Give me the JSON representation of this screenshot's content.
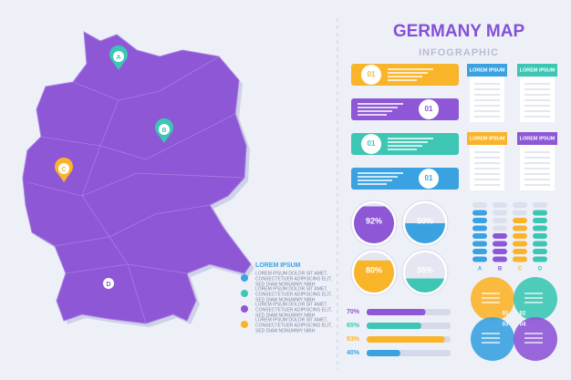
{
  "header": {
    "title": "GERMANY MAP",
    "subtitle": "INFOGRAPHIC"
  },
  "map": {
    "pins": [
      {
        "label": "A",
        "color": "#3cc6b3"
      },
      {
        "label": "B",
        "color": "#3cc6b3"
      },
      {
        "label": "C",
        "color": "#f9b42a"
      },
      {
        "label": "D",
        "color": "#8e57d6"
      }
    ]
  },
  "legend": {
    "title": "LOREM IPSUM",
    "items": [
      {
        "color": "#3aa2e0",
        "lines": [
          "LOREM IPSUM DOLOR SIT AMET,",
          "CONSECTETUER ADIPISCING ELIT,",
          "SED DIAM NONUMMY NIBH"
        ]
      },
      {
        "color": "#3cc6b3",
        "lines": [
          "LOREM IPSUM DOLOR SIT AMET,",
          "CONSECTETUER ADIPISCING ELIT,",
          "SED DIAM NONUMMY NIBH"
        ]
      },
      {
        "color": "#8e57d6",
        "lines": [
          "LOREM IPSUM DOLOR SIT AMET,",
          "CONSECTETUER ADIPISCING ELIT,",
          "SED DIAM NONUMMY NIBH"
        ]
      },
      {
        "color": "#f9b42a",
        "lines": [
          "LOREM IPSUM DOLOR SIT AMET,",
          "CONSECTETUER ADIPISCING ELIT,",
          "SED DIAM NONUMMY NIBH"
        ]
      }
    ]
  },
  "banners": [
    {
      "number": "01",
      "color": "#f9b42a"
    },
    {
      "number": "01",
      "color": "#8e57d6"
    },
    {
      "number": "01",
      "color": "#3cc6b3"
    },
    {
      "number": "01",
      "color": "#3aa2e0"
    }
  ],
  "cards": [
    {
      "title": "LOREM IPSUM",
      "color": "#3aa2e0"
    },
    {
      "title": "LOREM IPSUM",
      "color": "#3cc6b3"
    },
    {
      "title": "LOREM IPSUM",
      "color": "#f9b42a"
    },
    {
      "title": "LOREM IPSUM",
      "color": "#8e57d6"
    }
  ],
  "gauges": [
    {
      "value": 92,
      "label": "92%",
      "color": "#8e57d6"
    },
    {
      "value": 50,
      "label": "50%",
      "color": "#3aa2e0"
    },
    {
      "value": 80,
      "label": "80%",
      "color": "#f9b42a"
    },
    {
      "value": 35,
      "label": "35%",
      "color": "#3cc6b3"
    }
  ],
  "columns": [
    {
      "label": "A",
      "color": "#3aa2e0"
    },
    {
      "label": "B",
      "color": "#8e57d6"
    },
    {
      "label": "C",
      "color": "#f9b42a"
    },
    {
      "label": "D",
      "color": "#3cc6b3"
    }
  ],
  "progress": [
    {
      "value": 70,
      "label": "70%",
      "color": "#8e57d6"
    },
    {
      "value": 65,
      "label": "65%",
      "color": "#3cc6b3"
    },
    {
      "value": 93,
      "label": "93%",
      "color": "#f9b42a"
    },
    {
      "value": 40,
      "label": "40%",
      "color": "#3aa2e0"
    }
  ],
  "venn": [
    {
      "number": "01",
      "color": "#f9b42a"
    },
    {
      "number": "02",
      "color": "#3cc6b3"
    },
    {
      "number": "03",
      "color": "#3aa2e0"
    },
    {
      "number": "04",
      "color": "#8e57d6"
    }
  ]
}
